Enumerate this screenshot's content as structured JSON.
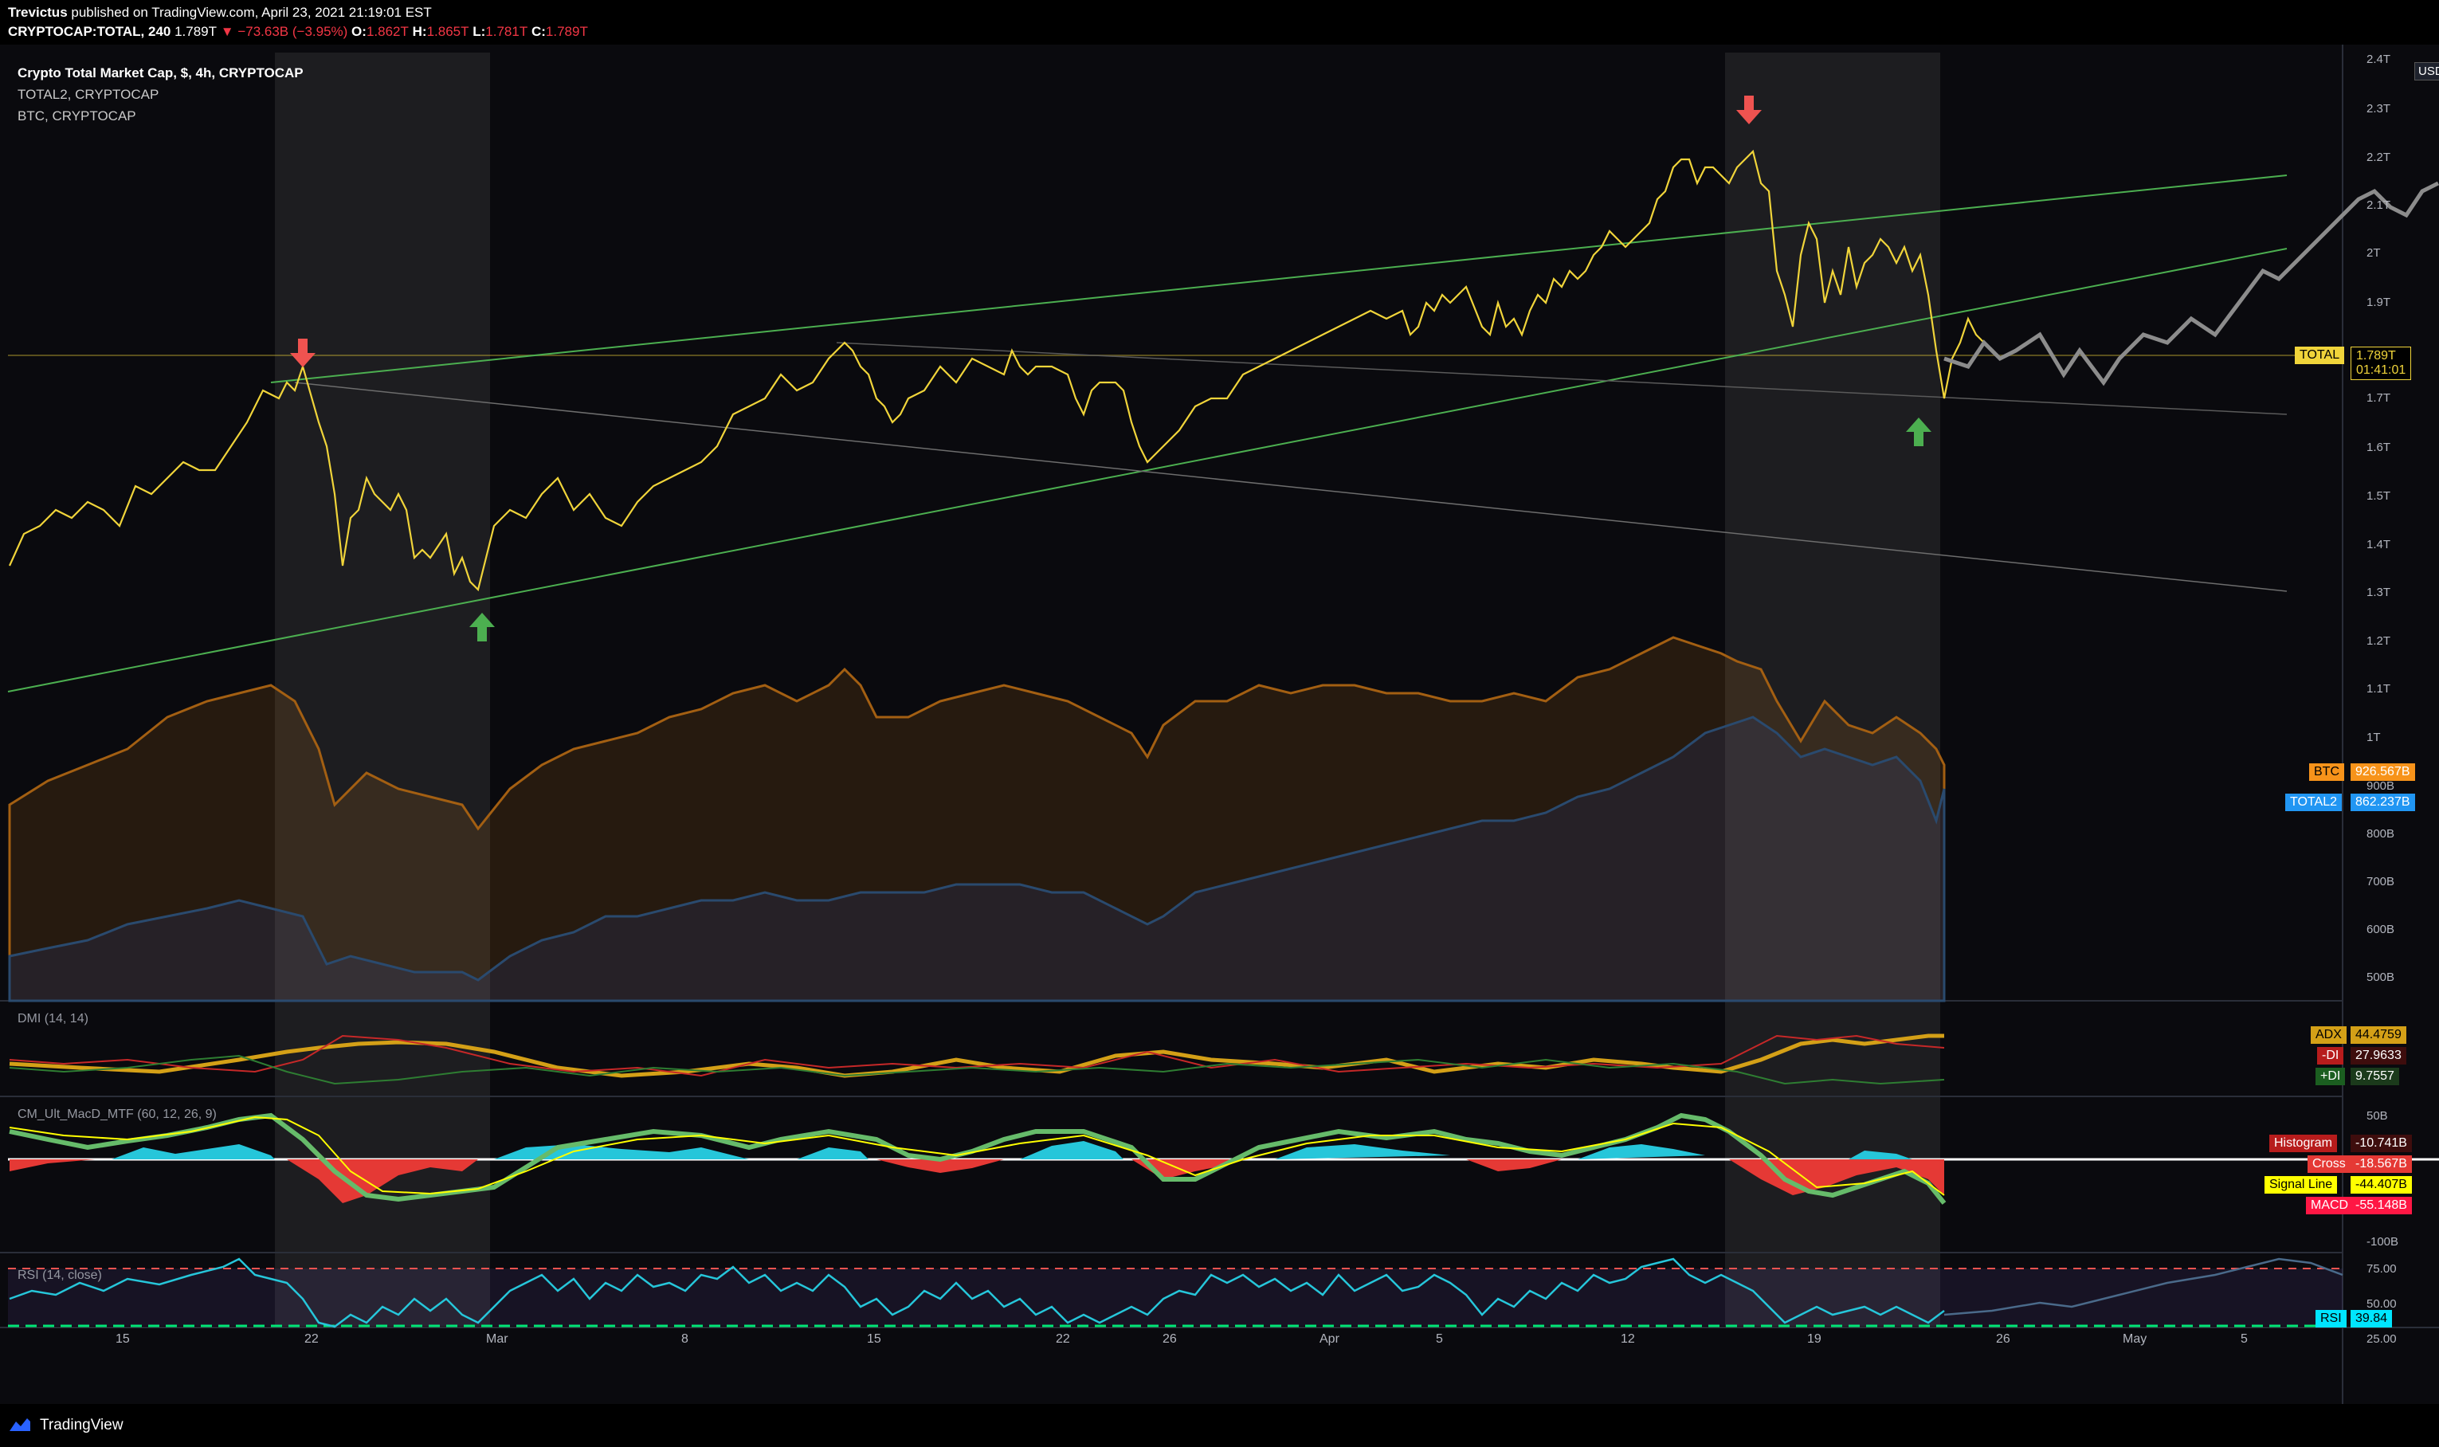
{
  "header": {
    "author": "Trevictus",
    "published": "published on TradingView.com, April 23, 2021 21:19:01 EST",
    "symbol": "CRYPTOCAP:TOTAL, 240",
    "last": "1.789T",
    "change": "−73.63B (−3.95%)",
    "o_label": "O:",
    "o_val": "1.862T",
    "h_label": "H:",
    "h_val": "1.865T",
    "l_label": "L:",
    "l_val": "1.781T",
    "c_label": "C:",
    "c_val": "1.789T"
  },
  "legend": {
    "main": "Crypto Total Market Cap, $, 4h, CRYPTOCAP",
    "s2": "TOTAL2, CRYPTOCAP",
    "s3": "BTC, CRYPTOCAP"
  },
  "currency": "USD",
  "price_axis": [
    "2.4T",
    "2.3T",
    "2.2T",
    "2.1T",
    "2T",
    "1.9T",
    "1.7T",
    "1.6T",
    "1.5T",
    "1.4T",
    "1.3T",
    "1.2T",
    "1.1T",
    "1T",
    "900B",
    "800B",
    "700B",
    "600B",
    "500B"
  ],
  "tags": {
    "total_name": "TOTAL",
    "total_val": "1.789T",
    "total_time": "01:41:01",
    "btc_name": "BTC",
    "btc_val": "926.567B",
    "total2_name": "TOTAL2",
    "total2_val": "862.237B"
  },
  "dmi": {
    "title": "DMI (14, 14)",
    "adx_name": "ADX",
    "adx_val": "44.4759",
    "mdi_name": "-DI",
    "mdi_val": "27.9633",
    "pdi_name": "+DI",
    "pdi_val": "9.7557"
  },
  "macd": {
    "title": "CM_Ult_MacD_MTF (60, 12, 26, 9)",
    "axis_top": "50B",
    "axis_bottom": "-100B",
    "hist_name": "Histogram",
    "hist_val": "-10.741B",
    "cross_name": "Cross",
    "cross_val": "-18.567B",
    "signal_name": "Signal Line",
    "signal_val": "-44.407B",
    "macd_name": "MACD",
    "macd_val": "-55.148B"
  },
  "rsi": {
    "title": "RSI (14, close)",
    "axis": [
      "75.00",
      "50.00",
      "25.00"
    ],
    "rsi_name": "RSI",
    "rsi_val": "39.84"
  },
  "time_axis": [
    "15",
    "22",
    "Mar",
    "8",
    "15",
    "22",
    "26",
    "Apr",
    "5",
    "12",
    "19",
    "26",
    "May",
    "5"
  ],
  "footer": {
    "brand": "TradingView"
  },
  "colors": {
    "total": "#f0d43a",
    "btc": "#f7931a",
    "total2": "#2962ff",
    "up": "#26a69a",
    "down": "#f23645",
    "channel": "#4caf50",
    "projection": "#8c8c8c"
  }
}
